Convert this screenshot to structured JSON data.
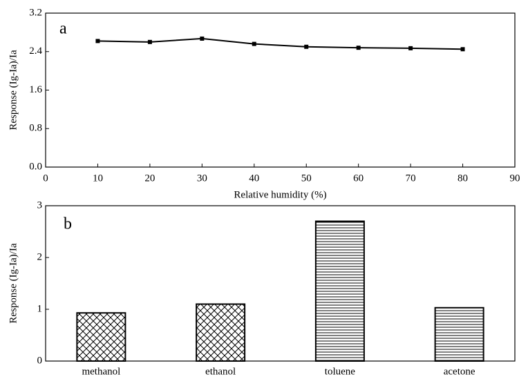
{
  "chart_data": [
    {
      "type": "line",
      "annotation": "a",
      "x_label": "Relative humidity (%)",
      "y_label": "Response (Ig-Ia)/Ia",
      "x": [
        10,
        20,
        30,
        40,
        50,
        60,
        70,
        80
      ],
      "values": [
        2.62,
        2.6,
        2.67,
        2.56,
        2.5,
        2.48,
        2.47,
        2.45
      ],
      "color": "#000000",
      "xlim": [
        0,
        90
      ],
      "xticks": [
        0,
        10,
        20,
        30,
        40,
        50,
        60,
        70,
        80,
        90
      ],
      "ylim": [
        0,
        3.2
      ],
      "yticks": [
        {
          "value": 0,
          "label": "0.0"
        },
        0.8,
        1.6,
        2.4,
        3.2
      ]
    },
    {
      "type": "bar",
      "annotation": "b",
      "y_label": "Response (Ig-Ia)/Ia",
      "categories": [
        "methanol",
        "ethanol",
        "toluene",
        "acetone"
      ],
      "values": [
        0.93,
        1.1,
        2.7,
        1.03
      ],
      "hatch": [
        "crosshatch",
        "crosshatch",
        "horizontal",
        "horizontal"
      ],
      "color": "#000000",
      "ylim": [
        0,
        3
      ],
      "yticks": [
        0,
        1,
        2,
        3
      ]
    }
  ]
}
